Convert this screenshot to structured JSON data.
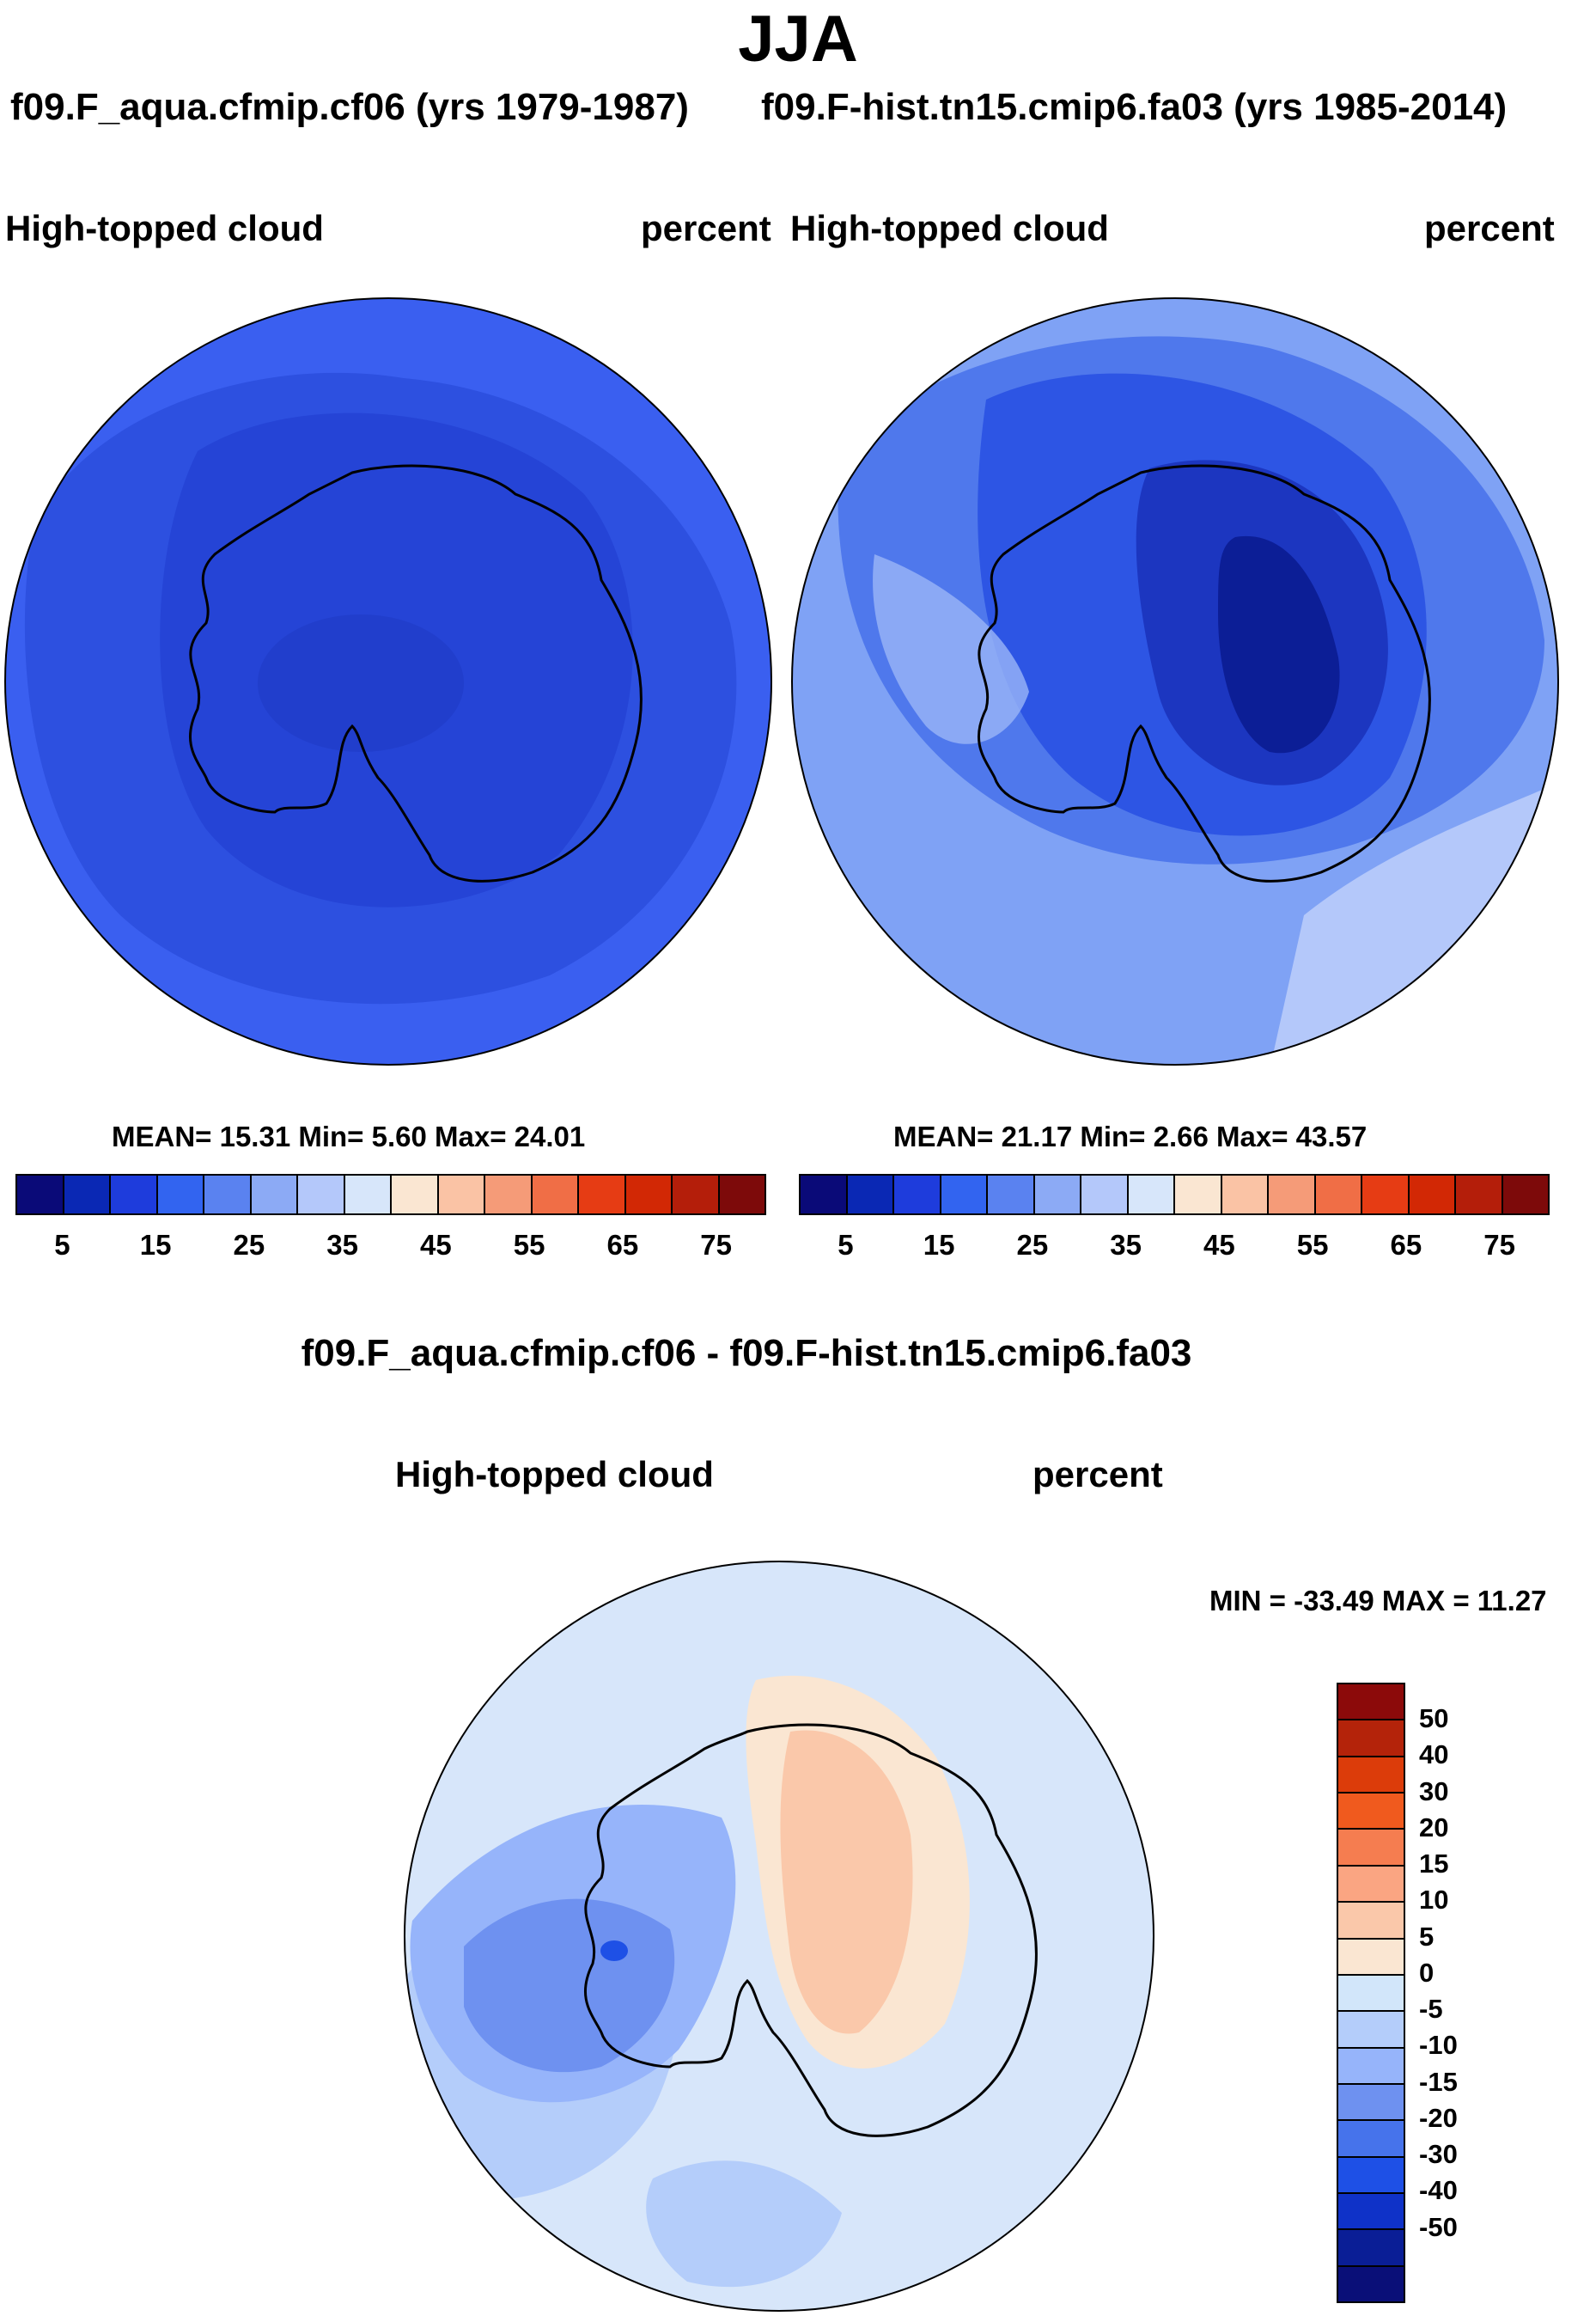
{
  "title": "JJA",
  "panel_left": {
    "case_title": "f09.F_aqua.cfmip.cf06 (yrs 1979-1987)",
    "variable": "High-topped cloud",
    "units": "percent",
    "stats": "MEAN=  15.31  Min=   5.60  Max=  24.01"
  },
  "panel_right": {
    "case_title": "f09.F-hist.tn15.cmip6.fa03 (yrs 1985-2014)",
    "variable": "High-topped cloud",
    "units": "percent",
    "stats": "MEAN=  21.17  Min=   2.66  Max=  43.57"
  },
  "panel_diff": {
    "case_title": "f09.F_aqua.cfmip.cf06 - f09.F-hist.tn15.cmip6.fa03",
    "variable": "High-topped cloud",
    "units": "percent",
    "stats": "MIN = -33.49 MAX =  11.27"
  },
  "colorbar_abs": {
    "colors": [
      "#0a0a78",
      "#0a28b4",
      "#1e3cdc",
      "#3264f0",
      "#5a82f0",
      "#8caaf5",
      "#b4c8fa",
      "#d7e6fa",
      "#fae6d2",
      "#fac3a5",
      "#f59b78",
      "#f06e46",
      "#e63c14",
      "#d22805",
      "#b41e0a",
      "#7d0a0a"
    ],
    "tick_labels": [
      "5",
      "15",
      "25",
      "35",
      "45",
      "55",
      "65",
      "75"
    ]
  },
  "colorbar_diff": {
    "colors": [
      "#8c0a0a",
      "#b4230a",
      "#dc3c0a",
      "#f05a1e",
      "#f57d50",
      "#faa582",
      "#fac8aa",
      "#fae6d2",
      "#d2e6fa",
      "#b4cdfa",
      "#96b4fa",
      "#6e91f0",
      "#4673eb",
      "#1e50e6",
      "#0f32c8",
      "#0a1e96",
      "#0a0f78"
    ],
    "tick_labels": [
      "50",
      "40",
      "30",
      "20",
      "15",
      "10",
      "5",
      "0",
      "-5",
      "-10",
      "-15",
      "-20",
      "-30",
      "-40",
      "-50"
    ]
  },
  "chart_data": [
    {
      "type": "heatmap",
      "projection": "south polar stereographic",
      "season": "JJA",
      "case": "f09.F_aqua.cfmip.cf06",
      "years": "1979-1987",
      "variable": "High-topped cloud",
      "units": "percent",
      "mean": 15.31,
      "min": 5.6,
      "max": 24.01,
      "contour_levels": [
        5,
        10,
        15,
        20,
        25,
        30,
        35,
        40,
        45,
        50,
        55,
        60,
        65,
        70,
        75
      ]
    },
    {
      "type": "heatmap",
      "projection": "south polar stereographic",
      "season": "JJA",
      "case": "f09.F-hist.tn15.cmip6.fa03",
      "years": "1985-2014",
      "variable": "High-topped cloud",
      "units": "percent",
      "mean": 21.17,
      "min": 2.66,
      "max": 43.57,
      "contour_levels": [
        5,
        10,
        15,
        20,
        25,
        30,
        35,
        40,
        45,
        50,
        55,
        60,
        65,
        70,
        75
      ]
    },
    {
      "type": "heatmap",
      "projection": "south polar stereographic",
      "season": "JJA",
      "case": "f09.F_aqua.cfmip.cf06 - f09.F-hist.tn15.cmip6.fa03",
      "variable": "High-topped cloud",
      "units": "percent",
      "min": -33.49,
      "max": 11.27,
      "contour_levels": [
        -50,
        -40,
        -30,
        -20,
        -15,
        -10,
        -5,
        0,
        5,
        10,
        15,
        20,
        30,
        40,
        50
      ]
    }
  ]
}
